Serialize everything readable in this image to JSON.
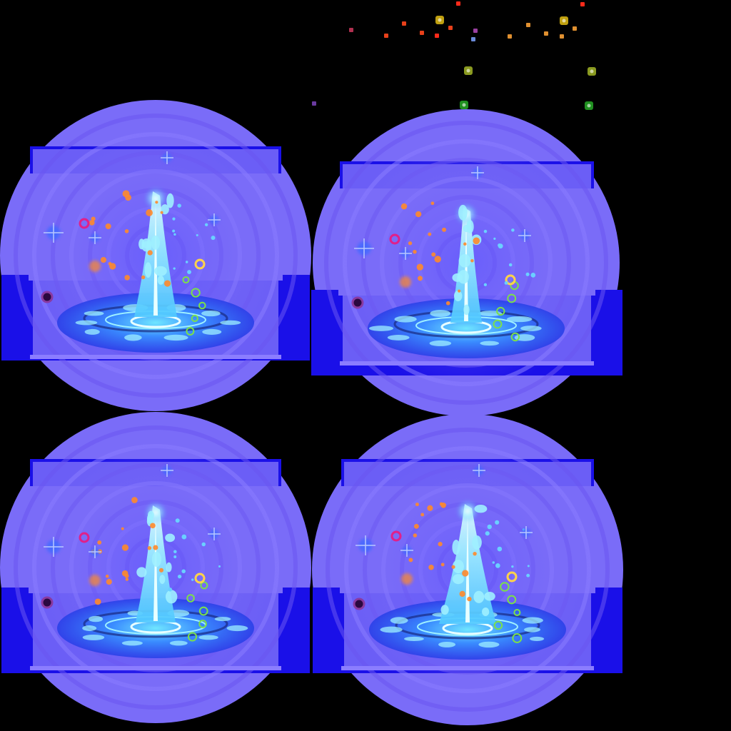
{
  "sprite_sheet": {
    "description_kind": "effect-frames",
    "frame_count": 4,
    "colors": {
      "background": "#000000",
      "aura": "#7a6cf8",
      "aura_ring": "#8b7dff",
      "aura_deep": "#6a55f0",
      "block_blue": "#1a10e8",
      "pool_blue": "#2d5cff",
      "pool_light": "#4fb8ff",
      "fountain": "#9ef0ff",
      "fountain_core": "#e8ffff",
      "spark_orange": "#ff8a2a",
      "spark_magenta": "#e0208a",
      "spark_green": "#7be04a",
      "spark_purple": "#4a1060",
      "spark_yellow": "#ffd24a",
      "star_blue": "#3f6bff"
    },
    "frames": [
      {
        "id": "frame-1",
        "variant": "tall-jet"
      },
      {
        "id": "frame-2",
        "variant": "rising-droplets"
      },
      {
        "id": "frame-3",
        "variant": "medium-jet"
      },
      {
        "id": "frame-4",
        "variant": "full-burst"
      }
    ],
    "loose_particles": {
      "colors": [
        "#ff2a1a",
        "#e8401a",
        "#c0a010",
        "#b03050",
        "#ff6a20",
        "#e09030",
        "#6a8ad8",
        "#9a40a0",
        "#8a9a20",
        "#209020",
        "#6a3aa0"
      ]
    }
  }
}
